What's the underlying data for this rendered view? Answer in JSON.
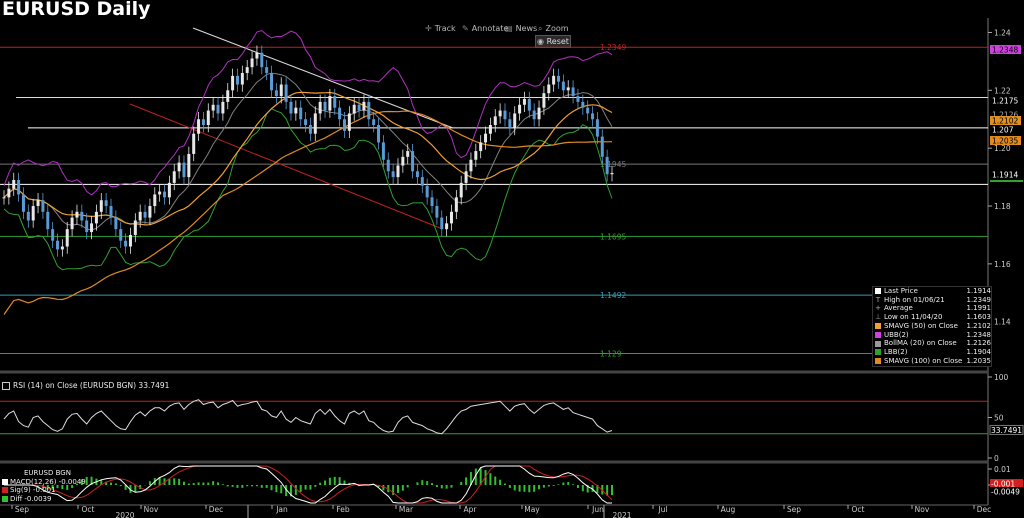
{
  "title": "EURUSD Daily",
  "toolbar": [
    {
      "icon": "crosshair-icon",
      "label": "Track"
    },
    {
      "icon": "pencil-icon",
      "label": "Annotate"
    },
    {
      "icon": "news-icon",
      "label": "News"
    },
    {
      "icon": "magnifier-icon",
      "label": "Zoom"
    }
  ],
  "reset_label": "Reset",
  "colors": {
    "price": "#5b9bd5",
    "smavg50": "#f0a030",
    "ubb": "#b030c0",
    "bolma": "#808080",
    "lbb": "#30a030",
    "smavg100": "#e08a20",
    "red_line": "#c02020",
    "rsi": "#dddddd",
    "macd_hist": "#30c030"
  },
  "chart_data": {
    "type": "line",
    "title": "EURUSD Daily",
    "x_ticks": [
      "Sep",
      "Oct",
      "Nov",
      "Dec",
      "Jan",
      "Feb",
      "Mar",
      "Apr",
      "May",
      "Jun",
      "Jul",
      "Aug",
      "Sep",
      "Oct",
      "Nov",
      "Dec"
    ],
    "year_labels": [
      "2020",
      "2021"
    ],
    "y_ticks": [
      "1.24",
      "1.22",
      "1.20",
      "1.18",
      "1.16",
      "1.14"
    ],
    "ylim": [
      1.124,
      1.245
    ],
    "close_series": [
      1.183,
      1.186,
      1.189,
      1.184,
      1.178,
      1.175,
      1.18,
      1.182,
      1.178,
      1.172,
      1.168,
      1.165,
      1.166,
      1.172,
      1.176,
      1.178,
      1.175,
      1.171,
      1.174,
      1.178,
      1.182,
      1.18,
      1.176,
      1.172,
      1.168,
      1.166,
      1.17,
      1.175,
      1.178,
      1.176,
      1.18,
      1.184,
      1.185,
      1.183,
      1.188,
      1.192,
      1.195,
      1.19,
      1.198,
      1.205,
      1.21,
      1.208,
      1.213,
      1.215,
      1.212,
      1.216,
      1.22,
      1.225,
      1.222,
      1.226,
      1.228,
      1.231,
      1.233,
      1.228,
      1.226,
      1.22,
      1.218,
      1.222,
      1.216,
      1.212,
      1.214,
      1.21,
      1.208,
      1.205,
      1.212,
      1.216,
      1.213,
      1.218,
      1.214,
      1.21,
      1.206,
      1.212,
      1.215,
      1.213,
      1.216,
      1.21,
      1.208,
      1.202,
      1.196,
      1.192,
      1.19,
      1.194,
      1.197,
      1.199,
      1.192,
      1.19,
      1.187,
      1.183,
      1.18,
      1.176,
      1.172,
      1.174,
      1.178,
      1.183,
      1.188,
      1.192,
      1.196,
      1.199,
      1.202,
      1.205,
      1.208,
      1.211,
      1.213,
      1.21,
      1.207,
      1.212,
      1.215,
      1.217,
      1.213,
      1.21,
      1.214,
      1.219,
      1.222,
      1.225,
      1.223,
      1.22,
      1.221,
      1.218,
      1.216,
      1.214,
      1.212,
      1.21,
      1.204,
      1.197,
      1.191,
      1.1914
    ],
    "levels": [
      {
        "value": 1.2349,
        "label": "1.2349",
        "color": "#c02020"
      },
      {
        "value": 1.2175,
        "label": "",
        "color": "#dddddd"
      },
      {
        "value": 1.207,
        "label": "",
        "color": "#ffffff"
      },
      {
        "value": 1.1945,
        "label": "1.1945",
        "color": "#777777"
      },
      {
        "value": 1.1875,
        "label": "",
        "color": "#ffffff"
      },
      {
        "value": 1.1695,
        "label": "1.1695",
        "color": "#30a030"
      },
      {
        "value": 1.1492,
        "label": "1.1492",
        "color": "#3a9ab0"
      },
      {
        "value": 1.129,
        "label": "1.129",
        "color": "#30a030"
      }
    ],
    "right_axis_tags": [
      {
        "label": "1.2348",
        "bg": "#d040e0",
        "fg": "#000000"
      },
      {
        "label": "1.2175",
        "bg": "#000000",
        "fg": "#ffffff"
      },
      {
        "label": "1.2126",
        "bg": "#000000",
        "fg": "#aaaaaa"
      },
      {
        "label": "1.2102",
        "bg": "#e09020",
        "fg": "#000000"
      },
      {
        "label": "1.207",
        "bg": "#000000",
        "fg": "#ffffff"
      },
      {
        "label": "1.2035",
        "bg": "#e08a20",
        "fg": "#000000"
      },
      {
        "label": "1.1914",
        "bg": "#000000",
        "fg": "#ffffff"
      }
    ],
    "legend": [
      {
        "sym": "sq",
        "color": "#ffffff",
        "label": "Last Price",
        "value": "1.1914"
      },
      {
        "sym": "T",
        "color": "#aaaaaa",
        "label": "High on 01/06/21",
        "value": "1.2349"
      },
      {
        "sym": "+",
        "color": "#aaaaaa",
        "label": "Average",
        "value": "1.1991"
      },
      {
        "sym": "⊥",
        "color": "#aaaaaa",
        "label": "Low on 11/04/20",
        "value": "1.1603"
      },
      {
        "sym": "sq",
        "color": "#f0a030",
        "label": "SMAVG (50)  on Close",
        "value": "1.2102"
      },
      {
        "sym": "sq",
        "color": "#d040e0",
        "label": "UBB(2)",
        "value": "1.2348"
      },
      {
        "sym": "sq",
        "color": "#999999",
        "label": "BollMA (20)  on Close",
        "value": "1.2126"
      },
      {
        "sym": "sq",
        "color": "#30a030",
        "label": "LBB(2)",
        "value": "1.1904"
      },
      {
        "sym": "sq",
        "color": "#e08a20",
        "label": "SMAVG (100)  on Close",
        "value": "1.2035"
      }
    ],
    "rsi": {
      "label": "RSI (14)  on Close (EURUSD BGN)",
      "value": "33.7491",
      "y_ticks": [
        "100",
        "50",
        "0"
      ],
      "upper": 70,
      "lower": 30,
      "series": [
        48,
        55,
        58,
        45,
        40,
        38,
        50,
        52,
        45,
        40,
        35,
        33,
        36,
        48,
        54,
        55,
        48,
        42,
        50,
        55,
        58,
        52,
        46,
        40,
        36,
        35,
        45,
        53,
        57,
        52,
        58,
        62,
        62,
        58,
        64,
        67,
        68,
        60,
        66,
        70,
        72,
        66,
        68,
        69,
        62,
        66,
        68,
        71,
        64,
        66,
        67,
        69,
        70,
        60,
        58,
        52,
        50,
        58,
        48,
        44,
        50,
        46,
        44,
        42,
        55,
        60,
        54,
        60,
        52,
        46,
        42,
        55,
        58,
        54,
        58,
        46,
        44,
        38,
        34,
        32,
        33,
        44,
        50,
        52,
        44,
        42,
        40,
        36,
        34,
        31,
        30,
        36,
        44,
        52,
        58,
        60,
        64,
        65,
        66,
        67,
        68,
        69,
        70,
        64,
        58,
        64,
        66,
        67,
        60,
        55,
        60,
        65,
        67,
        68,
        64,
        60,
        62,
        56,
        54,
        52,
        50,
        48,
        40,
        36,
        32,
        34
      ]
    },
    "macd": {
      "title": "EURUSD BGN",
      "y_ticks": [
        "0.01",
        "0"
      ],
      "tags": [
        {
          "label": "-0.001",
          "bg": "#d02020",
          "fg": "#ffffff"
        },
        {
          "label": "-0.0049",
          "bg": "#000000",
          "fg": "#ffffff"
        }
      ],
      "rows": [
        {
          "label": "MACD(12,26)",
          "value": "-0.0049",
          "color": "#ffffff"
        },
        {
          "label": "Sig(9)",
          "value": "-0.001",
          "color": "#d02020"
        },
        {
          "label": "Diff",
          "value": "-0.0039",
          "color": "#30c030"
        }
      ]
    }
  }
}
